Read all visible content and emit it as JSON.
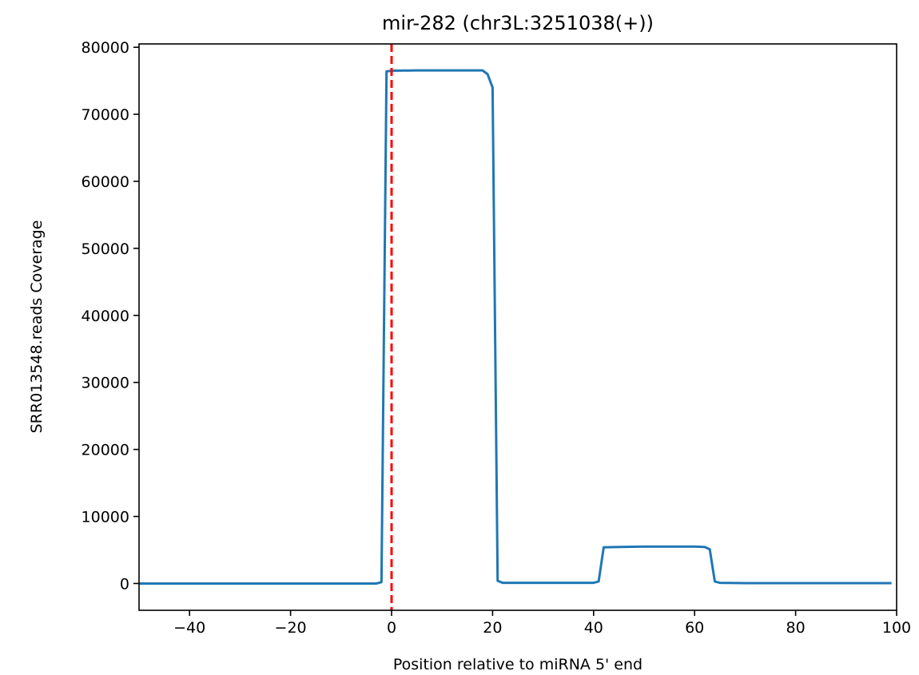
{
  "chart_data": {
    "type": "line",
    "title": "mir-282 (chr3L:3251038(+))",
    "xlabel": "Position relative to miRNA 5' end",
    "ylabel": "SRR013548.reads Coverage",
    "xlim": [
      -50,
      100
    ],
    "ylim": [
      -4000,
      80500
    ],
    "x_ticks": [
      -40,
      -20,
      0,
      20,
      40,
      60,
      80,
      100
    ],
    "x_tick_labels": [
      "−40",
      "−20",
      "0",
      "20",
      "40",
      "60",
      "80",
      "100"
    ],
    "y_ticks": [
      0,
      10000,
      20000,
      30000,
      40000,
      50000,
      60000,
      70000,
      80000
    ],
    "y_tick_labels": [
      "0",
      "10000",
      "20000",
      "30000",
      "40000",
      "50000",
      "60000",
      "70000",
      "80000"
    ],
    "grid": false,
    "series": [
      {
        "color": "#1f77b4",
        "x": [
          -50,
          -3,
          -2,
          -1,
          0,
          5,
          10,
          15,
          18,
          19,
          20,
          21,
          22,
          25,
          30,
          35,
          40,
          41,
          42,
          45,
          50,
          55,
          60,
          62,
          63,
          64,
          65,
          70,
          80,
          90,
          99
        ],
        "y": [
          0,
          0,
          200,
          76400,
          76500,
          76550,
          76550,
          76550,
          76550,
          76000,
          74000,
          400,
          100,
          100,
          100,
          100,
          100,
          300,
          5400,
          5450,
          5500,
          5500,
          5500,
          5450,
          5100,
          300,
          100,
          50,
          50,
          50,
          50
        ]
      }
    ],
    "reference_line": {
      "x": 0,
      "color": "#ff0000",
      "style": "dashed"
    }
  }
}
